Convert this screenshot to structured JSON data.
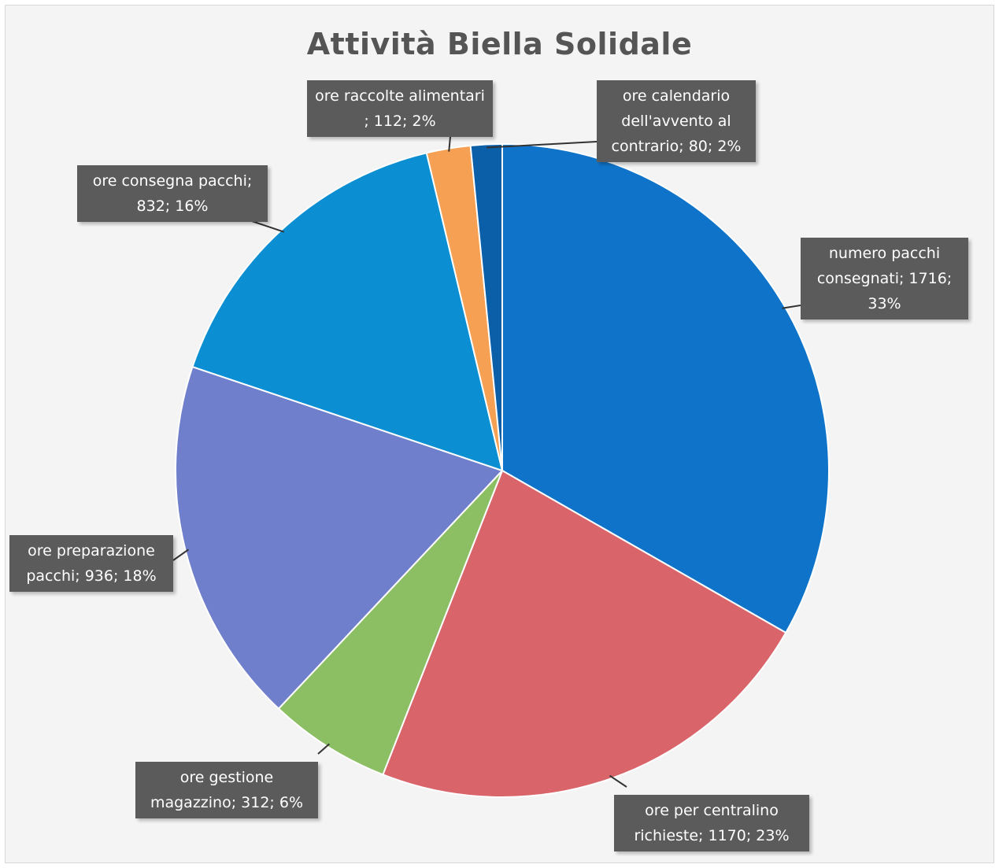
{
  "chart_data": {
    "type": "pie",
    "title": "Attività Biella Solidale",
    "slices": [
      {
        "name": "numero pacchi consegnati",
        "value": 1716,
        "percent": 33,
        "color": "#0f74c9",
        "label": "numero pacchi consegnati; 1716; 33%"
      },
      {
        "name": "ore per centralino richieste",
        "value": 1170,
        "percent": 23,
        "color": "#d9656b",
        "label": "ore per centralino richieste; 1170; 23%"
      },
      {
        "name": "ore gestione magazzino",
        "value": 312,
        "percent": 6,
        "color": "#8cbf63",
        "label": "ore gestione magazzino; 312; 6%"
      },
      {
        "name": "ore preparazione pacchi",
        "value": 936,
        "percent": 18,
        "color": "#6f7fcb",
        "label": "ore preparazione pacchi; 936; 18%"
      },
      {
        "name": "ore consegna pacchi",
        "value": 832,
        "percent": 16,
        "color": "#0c8fd2",
        "label": "ore consegna pacchi; 832; 16%"
      },
      {
        "name": "ore raccolte alimentari",
        "value": 112,
        "percent": 2,
        "color": "#f5a052",
        "label": "ore raccolte alimentari ; 112; 2%"
      },
      {
        "name": "ore calendario dell'avvento al contrario",
        "value": 80,
        "percent": 2,
        "color": "#0b5ea8",
        "label": "ore calendario dell'avvento al contrario; 80; 2%"
      }
    ],
    "legend": "none",
    "data_labels": "callouts"
  }
}
